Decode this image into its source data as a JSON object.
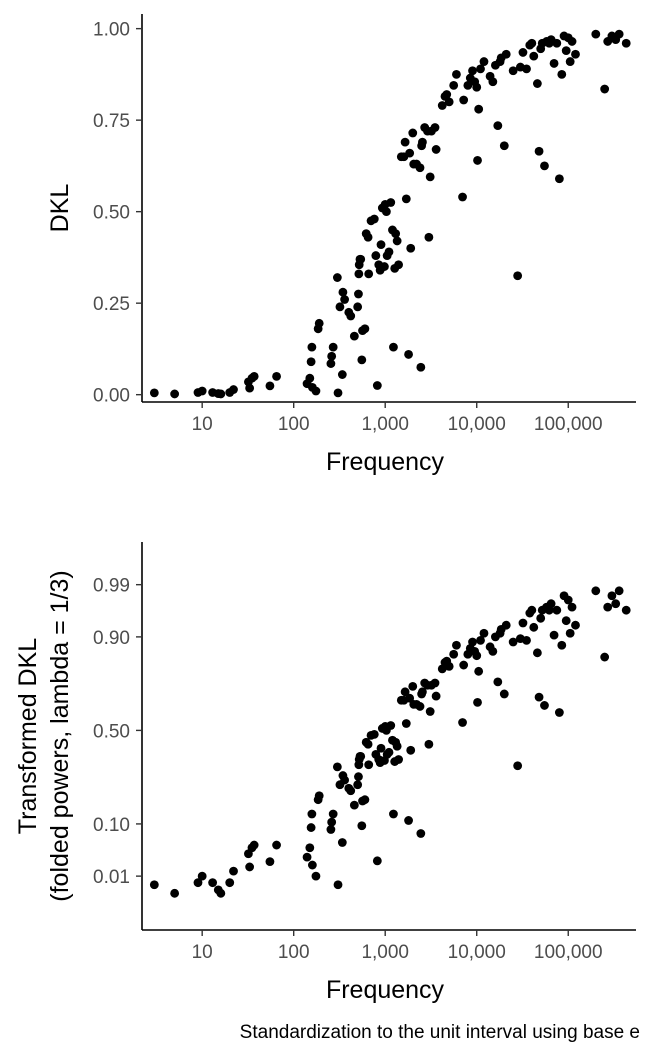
{
  "caption": "Standardization to the unit interval using base e",
  "chart_data": [
    {
      "type": "scatter",
      "title": "",
      "xlabel": "Frequency",
      "ylabel": "DKL",
      "x_scale": "log10",
      "xlim": [
        2.2,
        550000
      ],
      "ylim": [
        -0.02,
        1.04
      ],
      "x_ticks": [
        {
          "value": 10,
          "label": "10"
        },
        {
          "value": 100,
          "label": "100"
        },
        {
          "value": 1000,
          "label": "1,000"
        },
        {
          "value": 10000,
          "label": "10,000"
        },
        {
          "value": 100000,
          "label": "100,000"
        }
      ],
      "y_ticks": [
        {
          "value": 0.0,
          "label": "0.00"
        },
        {
          "value": 0.25,
          "label": "0.25"
        },
        {
          "value": 0.5,
          "label": "0.50"
        },
        {
          "value": 0.75,
          "label": "0.75"
        },
        {
          "value": 1.0,
          "label": "1.00"
        }
      ],
      "points": [
        [
          3,
          0.005
        ],
        [
          5,
          0.002
        ],
        [
          9,
          0.006
        ],
        [
          10,
          0.01
        ],
        [
          13,
          0.006
        ],
        [
          15,
          0.003
        ],
        [
          16,
          0.002
        ],
        [
          20,
          0.006
        ],
        [
          22,
          0.014
        ],
        [
          32,
          0.035
        ],
        [
          33,
          0.018
        ],
        [
          35,
          0.045
        ],
        [
          37,
          0.05
        ],
        [
          55,
          0.024
        ],
        [
          65,
          0.05
        ],
        [
          140,
          0.03
        ],
        [
          150,
          0.045
        ],
        [
          155,
          0.09
        ],
        [
          158,
          0.13
        ],
        [
          160,
          0.02
        ],
        [
          175,
          0.01
        ],
        [
          185,
          0.18
        ],
        [
          190,
          0.195
        ],
        [
          255,
          0.085
        ],
        [
          260,
          0.105
        ],
        [
          270,
          0.13
        ],
        [
          300,
          0.32
        ],
        [
          305,
          0.005
        ],
        [
          320,
          0.24
        ],
        [
          340,
          0.055
        ],
        [
          345,
          0.28
        ],
        [
          360,
          0.26
        ],
        [
          400,
          0.225
        ],
        [
          420,
          0.215
        ],
        [
          460,
          0.16
        ],
        [
          500,
          0.24
        ],
        [
          510,
          0.275
        ],
        [
          515,
          0.33
        ],
        [
          520,
          0.355
        ],
        [
          530,
          0.37
        ],
        [
          540,
          0.37
        ],
        [
          555,
          0.095
        ],
        [
          565,
          0.175
        ],
        [
          600,
          0.18
        ],
        [
          620,
          0.44
        ],
        [
          650,
          0.43
        ],
        [
          660,
          0.33
        ],
        [
          700,
          0.475
        ],
        [
          760,
          0.48
        ],
        [
          790,
          0.38
        ],
        [
          820,
          0.025
        ],
        [
          850,
          0.355
        ],
        [
          880,
          0.34
        ],
        [
          900,
          0.41
        ],
        [
          930,
          0.51
        ],
        [
          980,
          0.35
        ],
        [
          1000,
          0.52
        ],
        [
          1030,
          0.5
        ],
        [
          1050,
          0.38
        ],
        [
          1100,
          0.39
        ],
        [
          1150,
          0.525
        ],
        [
          1200,
          0.45
        ],
        [
          1230,
          0.13
        ],
        [
          1270,
          0.345
        ],
        [
          1300,
          0.44
        ],
        [
          1350,
          0.42
        ],
        [
          1400,
          0.355
        ],
        [
          1500,
          0.65
        ],
        [
          1600,
          0.65
        ],
        [
          1650,
          0.69
        ],
        [
          1700,
          0.535
        ],
        [
          1800,
          0.11
        ],
        [
          1850,
          0.66
        ],
        [
          1900,
          0.4
        ],
        [
          2000,
          0.715
        ],
        [
          2050,
          0.63
        ],
        [
          2200,
          0.63
        ],
        [
          2400,
          0.62
        ],
        [
          2450,
          0.075
        ],
        [
          2500,
          0.68
        ],
        [
          2550,
          0.69
        ],
        [
          2700,
          0.73
        ],
        [
          2900,
          0.72
        ],
        [
          3000,
          0.43
        ],
        [
          3100,
          0.595
        ],
        [
          3200,
          0.72
        ],
        [
          3500,
          0.73
        ],
        [
          3600,
          0.67
        ],
        [
          4200,
          0.79
        ],
        [
          4500,
          0.815
        ],
        [
          4700,
          0.82
        ],
        [
          5000,
          0.8
        ],
        [
          5600,
          0.845
        ],
        [
          6000,
          0.875
        ],
        [
          7000,
          0.54
        ],
        [
          7200,
          0.805
        ],
        [
          8000,
          0.845
        ],
        [
          8500,
          0.865
        ],
        [
          9000,
          0.885
        ],
        [
          9500,
          0.855
        ],
        [
          10000,
          0.84
        ],
        [
          10200,
          0.64
        ],
        [
          10500,
          0.78
        ],
        [
          11000,
          0.89
        ],
        [
          12000,
          0.91
        ],
        [
          14000,
          0.87
        ],
        [
          15000,
          0.855
        ],
        [
          16000,
          0.9
        ],
        [
          17000,
          0.735
        ],
        [
          18000,
          0.91
        ],
        [
          18500,
          0.92
        ],
        [
          20000,
          0.68
        ],
        [
          21000,
          0.93
        ],
        [
          25000,
          0.885
        ],
        [
          28000,
          0.325
        ],
        [
          30000,
          0.895
        ],
        [
          32000,
          0.935
        ],
        [
          35000,
          0.89
        ],
        [
          38000,
          0.955
        ],
        [
          40000,
          0.96
        ],
        [
          42000,
          0.925
        ],
        [
          46000,
          0.85
        ],
        [
          48000,
          0.665
        ],
        [
          50000,
          0.945
        ],
        [
          52000,
          0.96
        ],
        [
          55000,
          0.625
        ],
        [
          58000,
          0.965
        ],
        [
          62000,
          0.96
        ],
        [
          65000,
          0.97
        ],
        [
          70000,
          0.905
        ],
        [
          75000,
          0.96
        ],
        [
          80000,
          0.59
        ],
        [
          85000,
          0.875
        ],
        [
          90000,
          0.98
        ],
        [
          95000,
          0.94
        ],
        [
          100000,
          0.975
        ],
        [
          105000,
          0.91
        ],
        [
          110000,
          0.965
        ],
        [
          120000,
          0.93
        ],
        [
          200000,
          0.985
        ],
        [
          250000,
          0.835
        ],
        [
          270000,
          0.965
        ],
        [
          300000,
          0.98
        ],
        [
          330000,
          0.97
        ],
        [
          360000,
          0.985
        ],
        [
          430000,
          0.96
        ]
      ]
    },
    {
      "type": "scatter",
      "title": "",
      "xlabel": "Frequency",
      "ylabel": "Transformed DKL",
      "ylabel_line2": "(folded powers, lambda = 1/3)",
      "x_scale": "log10",
      "y_scale": "folded power, lambda = 1/3",
      "xlim": [
        2.2,
        550000
      ],
      "ylim": [
        -1.07,
        1.01
      ],
      "x_ticks": [
        {
          "value": 10,
          "label": "10"
        },
        {
          "value": 100,
          "label": "100"
        },
        {
          "value": 1000,
          "label": "1,000"
        },
        {
          "value": 10000,
          "label": "10,000"
        },
        {
          "value": 100000,
          "label": "100,000"
        }
      ],
      "y_ticks": [
        {
          "value": 0.01,
          "label": "0.01"
        },
        {
          "value": 0.1,
          "label": "0.10"
        },
        {
          "value": 0.5,
          "label": "0.50"
        },
        {
          "value": 0.9,
          "label": "0.90"
        },
        {
          "value": 0.99,
          "label": "0.99"
        }
      ],
      "points": [
        [
          3,
          0.005
        ],
        [
          5,
          0.002
        ],
        [
          9,
          0.006
        ],
        [
          10,
          0.01
        ],
        [
          13,
          0.006
        ],
        [
          15,
          0.003
        ],
        [
          16,
          0.002
        ],
        [
          20,
          0.006
        ],
        [
          22,
          0.014
        ],
        [
          32,
          0.035
        ],
        [
          33,
          0.018
        ],
        [
          35,
          0.045
        ],
        [
          37,
          0.05
        ],
        [
          55,
          0.024
        ],
        [
          65,
          0.05
        ],
        [
          140,
          0.03
        ],
        [
          150,
          0.045
        ],
        [
          155,
          0.09
        ],
        [
          158,
          0.13
        ],
        [
          160,
          0.02
        ],
        [
          175,
          0.01
        ],
        [
          185,
          0.18
        ],
        [
          190,
          0.195
        ],
        [
          255,
          0.085
        ],
        [
          260,
          0.105
        ],
        [
          270,
          0.13
        ],
        [
          300,
          0.32
        ],
        [
          305,
          0.005
        ],
        [
          320,
          0.24
        ],
        [
          340,
          0.055
        ],
        [
          345,
          0.28
        ],
        [
          360,
          0.26
        ],
        [
          400,
          0.225
        ],
        [
          420,
          0.215
        ],
        [
          460,
          0.16
        ],
        [
          500,
          0.24
        ],
        [
          510,
          0.275
        ],
        [
          515,
          0.33
        ],
        [
          520,
          0.355
        ],
        [
          530,
          0.37
        ],
        [
          540,
          0.37
        ],
        [
          555,
          0.095
        ],
        [
          565,
          0.175
        ],
        [
          600,
          0.18
        ],
        [
          620,
          0.44
        ],
        [
          650,
          0.43
        ],
        [
          660,
          0.33
        ],
        [
          700,
          0.475
        ],
        [
          760,
          0.48
        ],
        [
          790,
          0.38
        ],
        [
          820,
          0.025
        ],
        [
          850,
          0.355
        ],
        [
          880,
          0.34
        ],
        [
          900,
          0.41
        ],
        [
          930,
          0.51
        ],
        [
          980,
          0.35
        ],
        [
          1000,
          0.52
        ],
        [
          1030,
          0.5
        ],
        [
          1050,
          0.38
        ],
        [
          1100,
          0.39
        ],
        [
          1150,
          0.525
        ],
        [
          1200,
          0.45
        ],
        [
          1230,
          0.13
        ],
        [
          1270,
          0.345
        ],
        [
          1300,
          0.44
        ],
        [
          1350,
          0.42
        ],
        [
          1400,
          0.355
        ],
        [
          1500,
          0.65
        ],
        [
          1600,
          0.65
        ],
        [
          1650,
          0.69
        ],
        [
          1700,
          0.535
        ],
        [
          1800,
          0.11
        ],
        [
          1850,
          0.66
        ],
        [
          1900,
          0.4
        ],
        [
          2000,
          0.715
        ],
        [
          2050,
          0.63
        ],
        [
          2200,
          0.63
        ],
        [
          2400,
          0.62
        ],
        [
          2450,
          0.075
        ],
        [
          2500,
          0.68
        ],
        [
          2550,
          0.69
        ],
        [
          2700,
          0.73
        ],
        [
          2900,
          0.72
        ],
        [
          3000,
          0.43
        ],
        [
          3100,
          0.595
        ],
        [
          3200,
          0.72
        ],
        [
          3500,
          0.73
        ],
        [
          3600,
          0.67
        ],
        [
          4200,
          0.79
        ],
        [
          4500,
          0.815
        ],
        [
          4700,
          0.82
        ],
        [
          5000,
          0.8
        ],
        [
          5600,
          0.845
        ],
        [
          6000,
          0.875
        ],
        [
          7000,
          0.54
        ],
        [
          7200,
          0.805
        ],
        [
          8000,
          0.845
        ],
        [
          8500,
          0.865
        ],
        [
          9000,
          0.885
        ],
        [
          9500,
          0.855
        ],
        [
          10000,
          0.84
        ],
        [
          10200,
          0.64
        ],
        [
          10500,
          0.78
        ],
        [
          11000,
          0.89
        ],
        [
          12000,
          0.91
        ],
        [
          14000,
          0.87
        ],
        [
          15000,
          0.855
        ],
        [
          16000,
          0.9
        ],
        [
          17000,
          0.735
        ],
        [
          18000,
          0.91
        ],
        [
          18500,
          0.92
        ],
        [
          20000,
          0.68
        ],
        [
          21000,
          0.93
        ],
        [
          25000,
          0.885
        ],
        [
          28000,
          0.325
        ],
        [
          30000,
          0.895
        ],
        [
          32000,
          0.935
        ],
        [
          35000,
          0.89
        ],
        [
          38000,
          0.955
        ],
        [
          40000,
          0.96
        ],
        [
          42000,
          0.925
        ],
        [
          46000,
          0.85
        ],
        [
          48000,
          0.665
        ],
        [
          50000,
          0.945
        ],
        [
          52000,
          0.96
        ],
        [
          55000,
          0.625
        ],
        [
          58000,
          0.965
        ],
        [
          62000,
          0.96
        ],
        [
          65000,
          0.97
        ],
        [
          70000,
          0.905
        ],
        [
          75000,
          0.96
        ],
        [
          80000,
          0.59
        ],
        [
          85000,
          0.875
        ],
        [
          90000,
          0.98
        ],
        [
          95000,
          0.94
        ],
        [
          100000,
          0.975
        ],
        [
          105000,
          0.91
        ],
        [
          110000,
          0.965
        ],
        [
          120000,
          0.93
        ],
        [
          200000,
          0.985
        ],
        [
          250000,
          0.835
        ],
        [
          270000,
          0.965
        ],
        [
          300000,
          0.98
        ],
        [
          330000,
          0.97
        ],
        [
          360000,
          0.985
        ],
        [
          430000,
          0.96
        ]
      ]
    }
  ]
}
